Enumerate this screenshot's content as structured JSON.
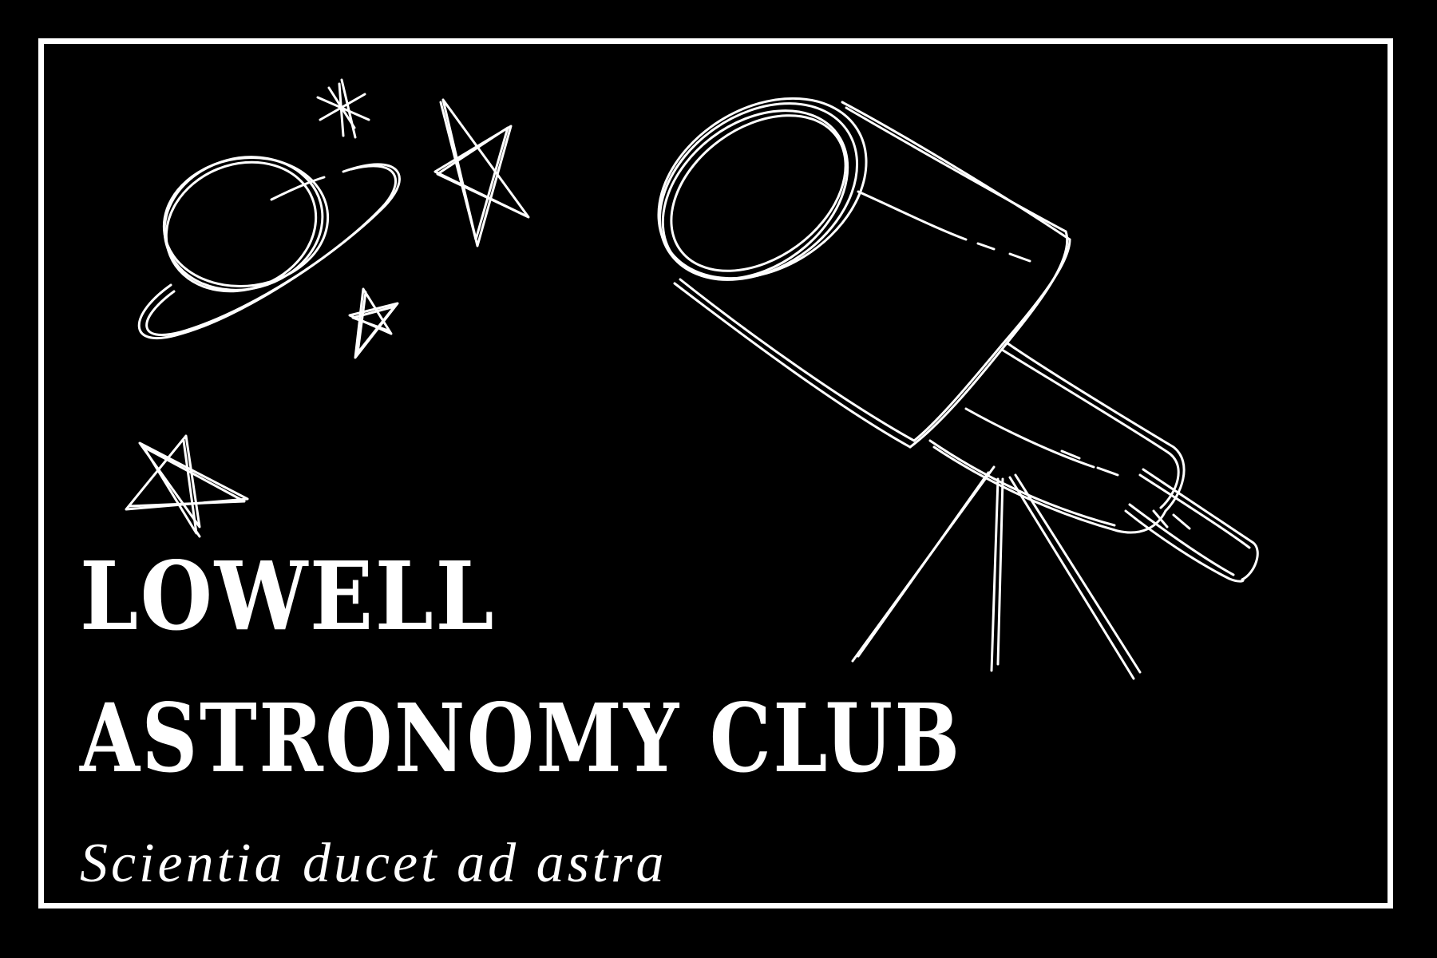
{
  "logo": {
    "title_line_1": "LOWELL",
    "title_line_2": "ASTRONOMY CLUB",
    "motto": "Scientia ducet ad astra"
  },
  "colors": {
    "background": "#000000",
    "foreground": "#ffffff"
  },
  "icons": [
    "telescope-icon",
    "planet-icon",
    "star-icon",
    "asterisk-star-icon"
  ]
}
